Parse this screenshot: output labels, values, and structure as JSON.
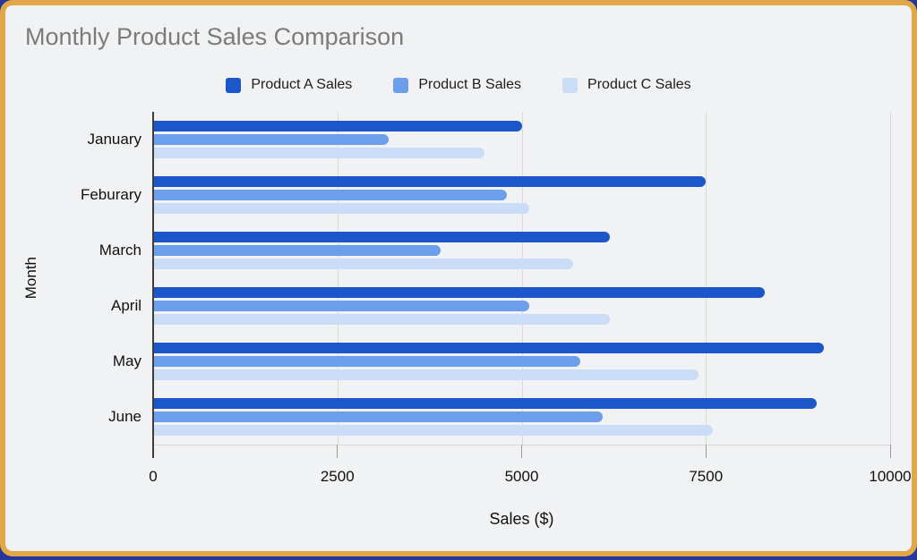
{
  "window": {
    "card_background": "#f1f2f3",
    "border_color": "#e2a847",
    "backdrop_color": "#26379b",
    "title_color": "#7b7b7b",
    "grid_color": "#d9d9d9",
    "axis_color": "#3d3d3d"
  },
  "chart_data": {
    "type": "bar",
    "orientation": "horizontal",
    "title": "Monthly Product Sales Comparison",
    "xlabel": "Sales ($)",
    "ylabel": "Month",
    "xlim": [
      0,
      10000
    ],
    "xticks": [
      0,
      2500,
      5000,
      7500,
      10000
    ],
    "grid": true,
    "legend_position": "top",
    "categories": [
      "January",
      "Feburary",
      "March",
      "April",
      "May",
      "June"
    ],
    "series": [
      {
        "name": "Product A Sales",
        "color": "#1b57c9",
        "values": [
          5000,
          7500,
          6200,
          8300,
          9100,
          9000
        ]
      },
      {
        "name": "Product B Sales",
        "color": "#6d9eeb",
        "values": [
          3200,
          4800,
          3900,
          5100,
          5800,
          6100
        ]
      },
      {
        "name": "Product C Sales",
        "color": "#cbdcf7",
        "values": [
          4500,
          5100,
          5700,
          6200,
          7400,
          7600
        ]
      }
    ]
  }
}
